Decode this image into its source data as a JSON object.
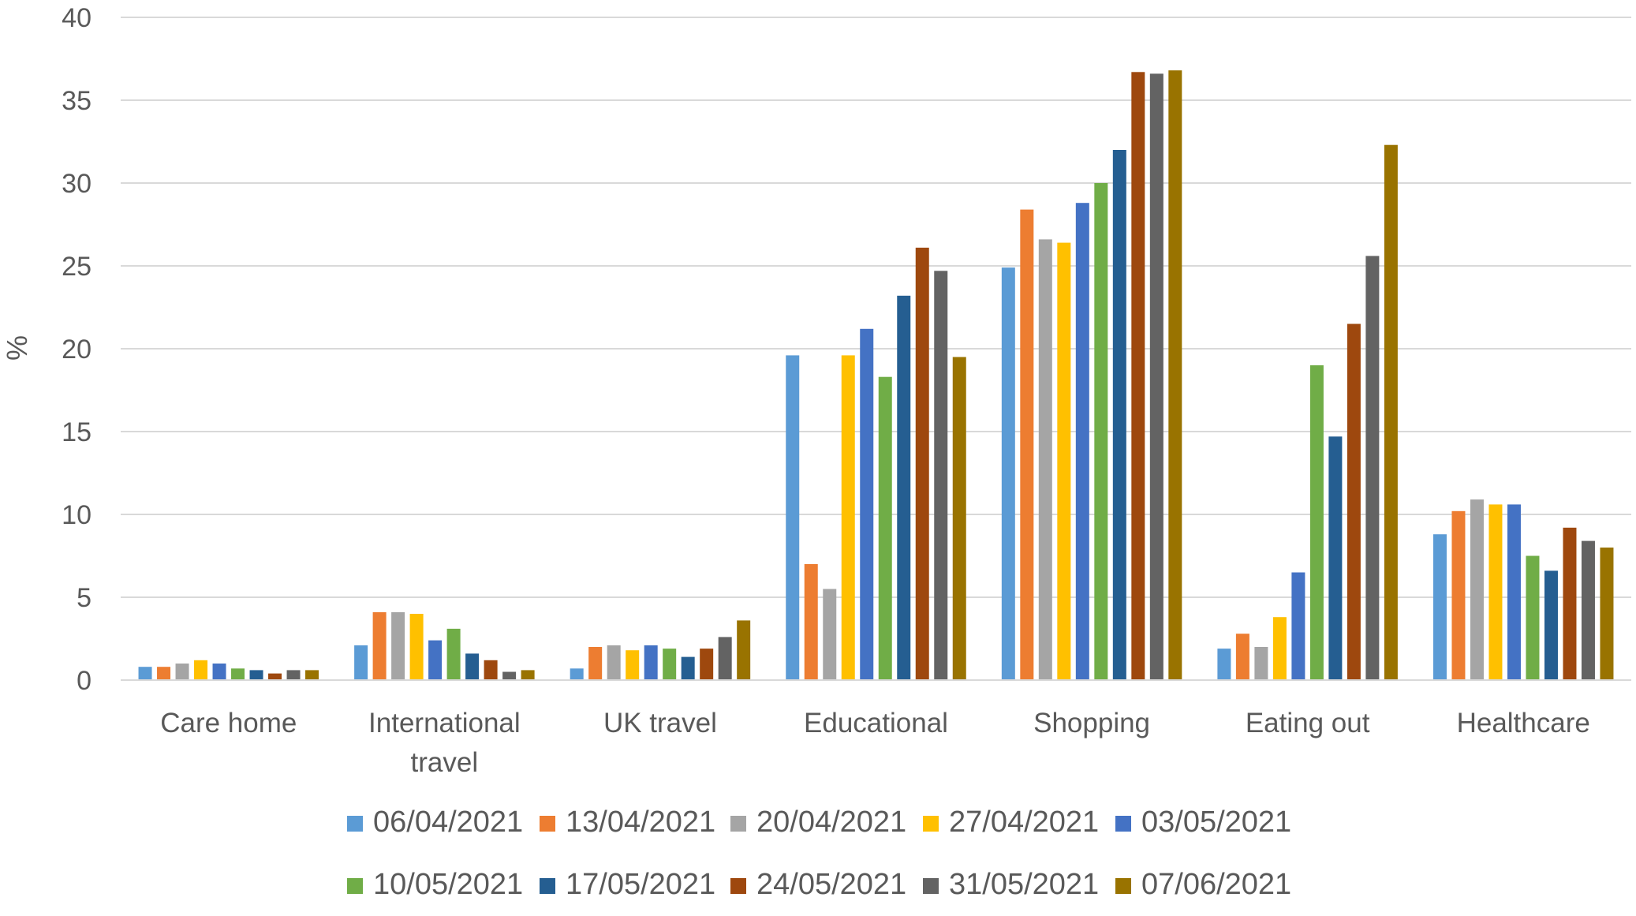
{
  "chart_data": {
    "type": "bar",
    "title": "",
    "xlabel": "",
    "ylabel": "%",
    "ylim": [
      0,
      40
    ],
    "yticks": [
      0,
      5,
      10,
      15,
      20,
      25,
      30,
      35,
      40
    ],
    "grid": true,
    "legend_position": "bottom",
    "categories": [
      [
        "Care home"
      ],
      [
        "International",
        "travel"
      ],
      [
        "UK travel"
      ],
      [
        "Educational"
      ],
      [
        "Shopping"
      ],
      [
        "Eating out"
      ],
      [
        "Healthcare"
      ]
    ],
    "series": [
      {
        "name": "06/04/2021",
        "color": "#5B9BD5",
        "values": [
          0.8,
          2.1,
          0.7,
          19.6,
          24.9,
          1.9,
          8.8
        ]
      },
      {
        "name": "13/04/2021",
        "color": "#ED7D31",
        "values": [
          0.8,
          4.1,
          2.0,
          7.0,
          28.4,
          2.8,
          10.2
        ]
      },
      {
        "name": "20/04/2021",
        "color": "#A5A5A5",
        "values": [
          1.0,
          4.1,
          2.1,
          5.5,
          26.6,
          2.0,
          10.9
        ]
      },
      {
        "name": "27/04/2021",
        "color": "#FFC000",
        "values": [
          1.2,
          4.0,
          1.8,
          19.6,
          26.4,
          3.8,
          10.6
        ]
      },
      {
        "name": "03/05/2021",
        "color": "#4472C4",
        "values": [
          1.0,
          2.4,
          2.1,
          21.2,
          28.8,
          6.5,
          10.6
        ]
      },
      {
        "name": "10/05/2021",
        "color": "#70AD47",
        "values": [
          0.7,
          3.1,
          1.9,
          18.3,
          30.0,
          19.0,
          7.5
        ]
      },
      {
        "name": "17/05/2021",
        "color": "#255E91",
        "values": [
          0.6,
          1.6,
          1.4,
          23.2,
          32.0,
          14.7,
          6.6
        ]
      },
      {
        "name": "24/05/2021",
        "color": "#9E480E",
        "values": [
          0.4,
          1.2,
          1.9,
          26.1,
          36.7,
          21.5,
          9.2
        ]
      },
      {
        "name": "31/05/2021",
        "color": "#636363",
        "values": [
          0.6,
          0.5,
          2.6,
          24.7,
          36.6,
          25.6,
          8.4
        ]
      },
      {
        "name": "07/06/2021",
        "color": "#997300",
        "values": [
          0.6,
          0.6,
          3.6,
          19.5,
          36.8,
          32.3,
          8.0
        ]
      }
    ]
  }
}
